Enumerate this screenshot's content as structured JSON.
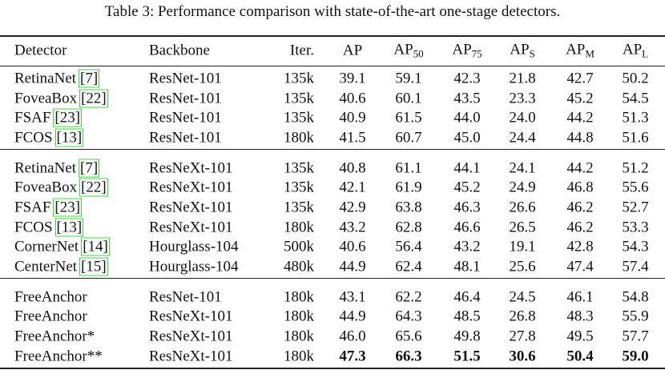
{
  "caption": "Table 3: Performance comparison with state-of-the-art one-stage detectors.",
  "table": {
    "header": [
      {
        "text": "Detector"
      },
      {
        "text": "Backbone"
      },
      {
        "text": "Iter."
      },
      {
        "text": "AP"
      },
      {
        "text": "AP",
        "sub": "50"
      },
      {
        "text": "AP",
        "sub": "75"
      },
      {
        "text": "AP",
        "sub": "S"
      },
      {
        "text": "AP",
        "sub": "M"
      },
      {
        "text": "AP",
        "sub": "L"
      }
    ],
    "groups": [
      [
        {
          "detector": "RetinaNet",
          "ref": "[7]",
          "backbone": "ResNet-101",
          "iter": "135k",
          "values": [
            "39.1",
            "59.1",
            "42.3",
            "21.8",
            "42.7",
            "50.2"
          ]
        },
        {
          "detector": "FoveaBox",
          "ref": "[22]",
          "backbone": "ResNet-101",
          "iter": "135k",
          "values": [
            "40.6",
            "60.1",
            "43.5",
            "23.3",
            "45.2",
            "54.5"
          ]
        },
        {
          "detector": "FSAF",
          "ref": "[23]",
          "backbone": "ResNet-101",
          "iter": "135k",
          "values": [
            "40.9",
            "61.5",
            "44.0",
            "24.0",
            "44.2",
            "51.3"
          ]
        },
        {
          "detector": "FCOS",
          "ref": "[13]",
          "backbone": "ResNet-101",
          "iter": "180k",
          "values": [
            "41.5",
            "60.7",
            "45.0",
            "24.4",
            "44.8",
            "51.6"
          ]
        }
      ],
      [
        {
          "detector": "RetinaNet",
          "ref": "[7]",
          "backbone": "ResNeXt-101",
          "iter": "135k",
          "values": [
            "40.8",
            "61.1",
            "44.1",
            "24.1",
            "44.2",
            "51.2"
          ]
        },
        {
          "detector": "FoveaBox",
          "ref": "[22]",
          "backbone": "ResNeXt-101",
          "iter": "135k",
          "values": [
            "42.1",
            "61.9",
            "45.2",
            "24.9",
            "46.8",
            "55.6"
          ]
        },
        {
          "detector": "FSAF",
          "ref": "[23]",
          "backbone": "ResNeXt-101",
          "iter": "135k",
          "values": [
            "42.9",
            "63.8",
            "46.3",
            "26.6",
            "46.2",
            "52.7"
          ]
        },
        {
          "detector": "FCOS",
          "ref": "[13]",
          "backbone": "ResNeXt-101",
          "iter": "180k",
          "values": [
            "43.2",
            "62.8",
            "46.6",
            "26.5",
            "46.2",
            "53.3"
          ]
        },
        {
          "detector": "CornerNet",
          "ref": "[14]",
          "backbone": "Hourglass-104",
          "iter": "500k",
          "values": [
            "40.6",
            "56.4",
            "43.2",
            "19.1",
            "42.8",
            "54.3"
          ]
        },
        {
          "detector": "CenterNet",
          "ref": "[15]",
          "backbone": "Hourglass-104",
          "iter": "480k",
          "values": [
            "44.9",
            "62.4",
            "48.1",
            "25.6",
            "47.4",
            "57.4"
          ]
        }
      ],
      [
        {
          "detector": "FreeAnchor",
          "backbone": "ResNet-101",
          "iter": "180k",
          "values": [
            "43.1",
            "62.2",
            "46.4",
            "24.5",
            "46.1",
            "54.8"
          ]
        },
        {
          "detector": "FreeAnchor",
          "backbone": "ResNeXt-101",
          "iter": "180k",
          "values": [
            "44.9",
            "64.3",
            "48.5",
            "26.8",
            "48.3",
            "55.9"
          ]
        },
        {
          "detector": "FreeAnchor*",
          "backbone": "ResNeXt-101",
          "iter": "180k",
          "values": [
            "46.0",
            "65.6",
            "49.8",
            "27.8",
            "49.5",
            "57.7"
          ]
        },
        {
          "detector": "FreeAnchor**",
          "backbone": "ResNeXt-101",
          "iter": "180k",
          "values": [
            "47.3",
            "66.3",
            "51.5",
            "30.6",
            "50.4",
            "59.0"
          ]
        }
      ]
    ]
  }
}
